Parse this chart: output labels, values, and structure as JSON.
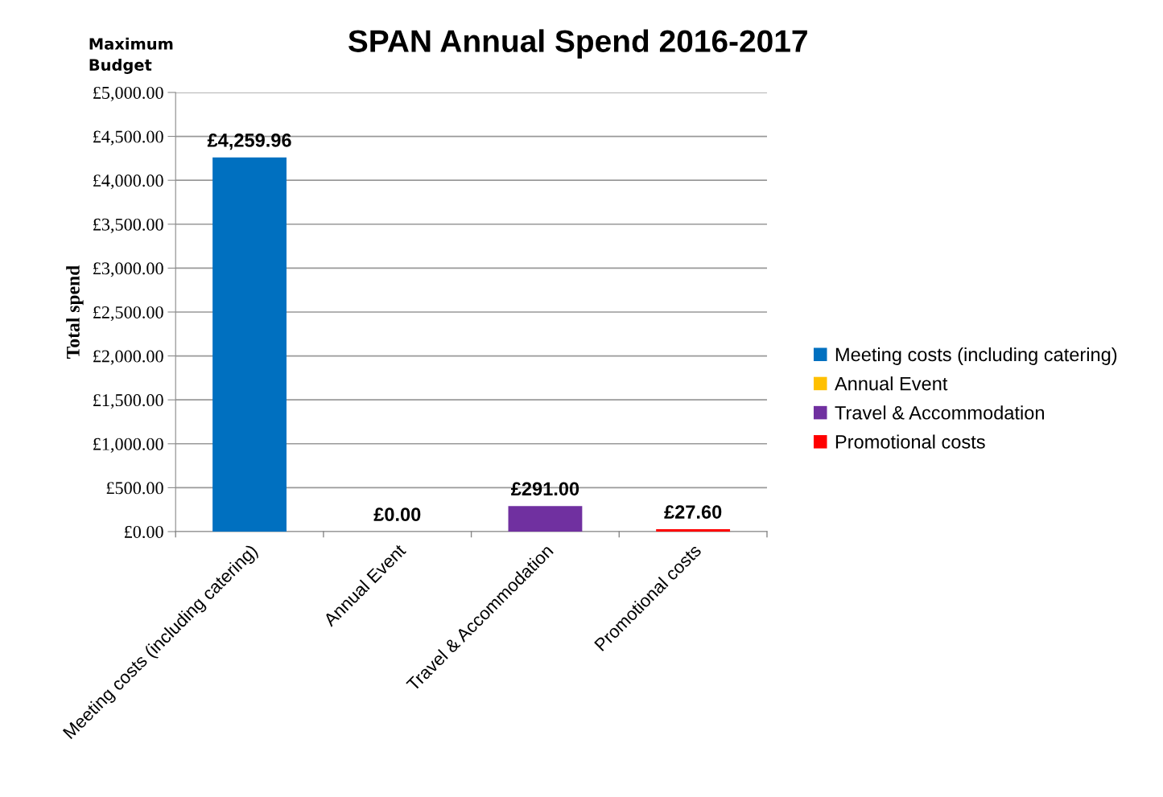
{
  "chart_data": {
    "type": "bar",
    "title": "SPAN Annual Spend 2016-2017",
    "ylabel": "Total spend",
    "annotations": [
      "Maximum\nBudget"
    ],
    "categories": [
      "Meeting costs (including catering)",
      "Annual Event",
      "Travel & Accommodation",
      "Promotional costs"
    ],
    "series": [
      {
        "name": "Meeting costs (including catering)",
        "color": "#0070c0",
        "values": [
          4259.96,
          null,
          null,
          null
        ],
        "value_labels": [
          "£4,259.96",
          null,
          null,
          null
        ]
      },
      {
        "name": "Annual Event",
        "color": "#ffc000",
        "values": [
          null,
          0,
          null,
          null
        ],
        "value_labels": [
          null,
          "£0.00",
          null,
          null
        ]
      },
      {
        "name": "Travel & Accommodation",
        "color": "#7030a0",
        "values": [
          null,
          null,
          291,
          null
        ],
        "value_labels": [
          null,
          null,
          "£291.00",
          null
        ]
      },
      {
        "name": "Promotional costs",
        "color": "#ff0000",
        "values": [
          null,
          null,
          null,
          27.6
        ],
        "value_labels": [
          null,
          null,
          null,
          "£27.60"
        ]
      }
    ],
    "ylim": [
      0,
      5000
    ],
    "yticks": [
      {
        "value": 0,
        "label": "£0.00"
      },
      {
        "value": 500,
        "label": "£500.00"
      },
      {
        "value": 1000,
        "label": "£1,000.00"
      },
      {
        "value": 1500,
        "label": "£1,500.00"
      },
      {
        "value": 2000,
        "label": "£2,000.00"
      },
      {
        "value": 2500,
        "label": "£2,500.00"
      },
      {
        "value": 3000,
        "label": "£3,000.00"
      },
      {
        "value": 3500,
        "label": "£3,500.00"
      },
      {
        "value": 4000,
        "label": "£4,000.00"
      },
      {
        "value": 4500,
        "label": "£4,500.00"
      },
      {
        "value": 5000,
        "label": "£5,000.00"
      }
    ],
    "grid": "y",
    "legend": "right"
  }
}
